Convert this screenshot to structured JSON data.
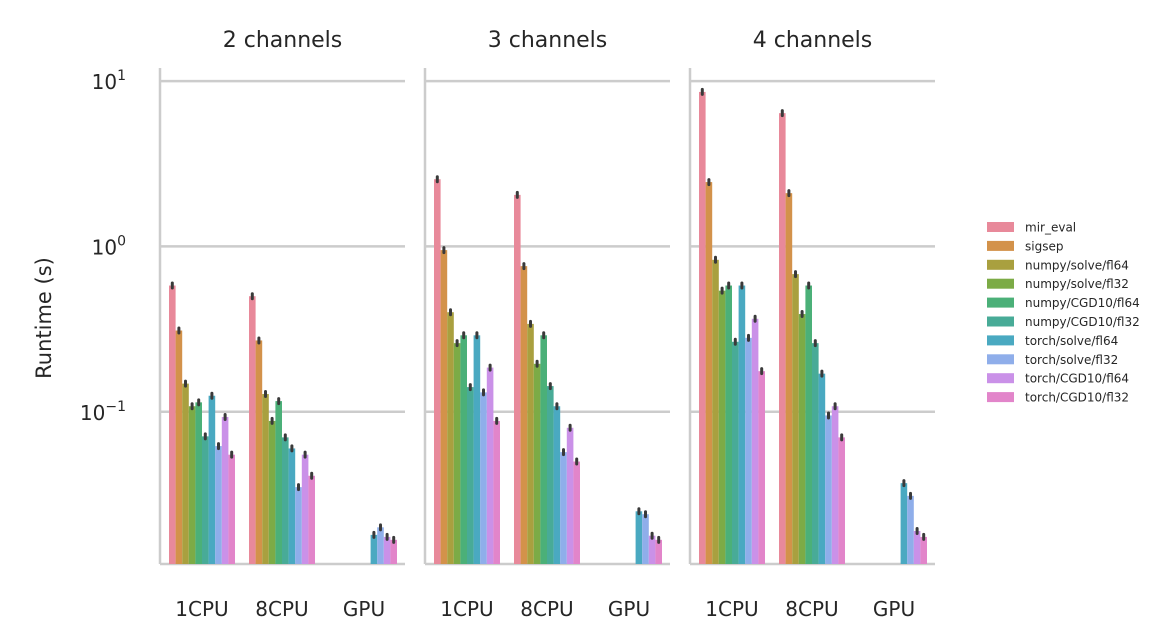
{
  "chart_data": {
    "type": "bar",
    "yscale": "log",
    "ylim": [
      0.012,
      12
    ],
    "ylabel": "Runtime (s)",
    "yticks": [
      {
        "value": 0.1,
        "label": "10",
        "exp": "−1"
      },
      {
        "value": 1,
        "label": "10",
        "exp": "0"
      },
      {
        "value": 10,
        "label": "10",
        "exp": "1"
      }
    ],
    "categories": [
      "1CPU",
      "8CPU",
      "GPU"
    ],
    "grid": true,
    "legend_position": "right",
    "panels": [
      {
        "title": "2 channels",
        "series": [
          {
            "name": "mir_eval",
            "values": [
              0.58,
              0.5,
              null
            ]
          },
          {
            "name": "sigsep",
            "values": [
              0.31,
              0.27,
              null
            ]
          },
          {
            "name": "numpy/solve/fl64",
            "values": [
              0.148,
              0.128,
              null
            ]
          },
          {
            "name": "numpy/solve/fl32",
            "values": [
              0.108,
              0.088,
              null
            ]
          },
          {
            "name": "numpy/CGD10/fl64",
            "values": [
              0.114,
              0.116,
              null
            ]
          },
          {
            "name": "numpy/CGD10/fl32",
            "values": [
              0.071,
              0.07,
              null
            ]
          },
          {
            "name": "torch/solve/fl64",
            "values": [
              0.125,
              0.06,
              0.018
            ]
          },
          {
            "name": "torch/solve/fl32",
            "values": [
              0.062,
              0.035,
              0.02
            ]
          },
          {
            "name": "torch/CGD10/fl64",
            "values": [
              0.093,
              0.055,
              0.0175
            ]
          },
          {
            "name": "torch/CGD10/fl32",
            "values": [
              0.055,
              0.041,
              0.0168
            ]
          }
        ]
      },
      {
        "title": "3 channels",
        "series": [
          {
            "name": "mir_eval",
            "values": [
              2.55,
              2.05,
              null
            ]
          },
          {
            "name": "sigsep",
            "values": [
              0.95,
              0.76,
              null
            ]
          },
          {
            "name": "numpy/solve/fl64",
            "values": [
              0.4,
              0.34,
              null
            ]
          },
          {
            "name": "numpy/solve/fl32",
            "values": [
              0.26,
              0.195,
              null
            ]
          },
          {
            "name": "numpy/CGD10/fl64",
            "values": [
              0.29,
              0.29,
              null
            ]
          },
          {
            "name": "numpy/CGD10/fl32",
            "values": [
              0.141,
              0.143,
              null
            ]
          },
          {
            "name": "torch/solve/fl64",
            "values": [
              0.29,
              0.108,
              0.025
            ]
          },
          {
            "name": "torch/solve/fl32",
            "values": [
              0.131,
              0.057,
              0.024
            ]
          },
          {
            "name": "torch/CGD10/fl64",
            "values": [
              0.185,
              0.08,
              0.0178
            ]
          },
          {
            "name": "torch/CGD10/fl32",
            "values": [
              0.088,
              0.05,
              0.0168
            ]
          }
        ]
      },
      {
        "title": "4 channels",
        "series": [
          {
            "name": "mir_eval",
            "values": [
              8.6,
              6.4,
              null
            ]
          },
          {
            "name": "sigsep",
            "values": [
              2.45,
              2.1,
              null
            ]
          },
          {
            "name": "numpy/solve/fl64",
            "values": [
              0.83,
              0.68,
              null
            ]
          },
          {
            "name": "numpy/solve/fl32",
            "values": [
              0.54,
              0.39,
              null
            ]
          },
          {
            "name": "numpy/CGD10/fl64",
            "values": [
              0.58,
              0.58,
              null
            ]
          },
          {
            "name": "numpy/CGD10/fl32",
            "values": [
              0.265,
              0.26,
              null
            ]
          },
          {
            "name": "torch/solve/fl64",
            "values": [
              0.58,
              0.17,
              0.037
            ]
          },
          {
            "name": "torch/solve/fl32",
            "values": [
              0.28,
              0.095,
              0.031
            ]
          },
          {
            "name": "torch/CGD10/fl64",
            "values": [
              0.365,
              0.108,
              0.019
            ]
          },
          {
            "name": "torch/CGD10/fl32",
            "values": [
              0.176,
              0.07,
              0.0175
            ]
          }
        ]
      }
    ],
    "colors": [
      "#e8899a",
      "#d3924a",
      "#a9a03f",
      "#7cab46",
      "#4bb078",
      "#48ab97",
      "#4aa9c1",
      "#8faeea",
      "#ca91e8",
      "#e285ca"
    ]
  }
}
